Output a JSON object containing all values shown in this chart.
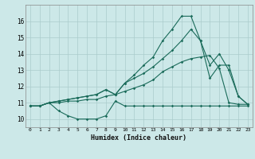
{
  "background_color": "#cce8e8",
  "grid_color": "#aacccc",
  "line_color": "#1a6b5a",
  "xlabel": "Humidex (Indice chaleur)",
  "xlim": [
    -0.5,
    23.5
  ],
  "ylim": [
    9.5,
    17.0
  ],
  "xticks": [
    0,
    1,
    2,
    3,
    4,
    5,
    6,
    7,
    8,
    9,
    10,
    11,
    12,
    13,
    14,
    15,
    16,
    17,
    18,
    19,
    20,
    21,
    22,
    23
  ],
  "yticks": [
    10,
    11,
    12,
    13,
    14,
    15,
    16
  ],
  "line1_x": [
    0,
    1,
    2,
    3,
    4,
    5,
    6,
    7,
    8,
    9,
    10,
    11,
    12,
    13,
    14,
    15,
    16,
    17,
    18,
    19,
    20,
    21,
    22,
    23
  ],
  "line1_y": [
    10.8,
    10.8,
    11.0,
    10.5,
    10.2,
    10.0,
    10.0,
    10.0,
    10.2,
    11.1,
    10.8,
    10.8,
    10.8,
    10.8,
    10.8,
    10.8,
    10.8,
    10.8,
    10.8,
    10.8,
    10.8,
    10.8,
    10.8,
    10.8
  ],
  "line2_x": [
    0,
    1,
    2,
    3,
    4,
    5,
    6,
    7,
    8,
    9,
    10,
    11,
    12,
    13,
    14,
    15,
    16,
    17,
    18,
    19,
    20,
    21,
    22,
    23
  ],
  "line2_y": [
    10.8,
    10.8,
    11.0,
    11.0,
    11.1,
    11.1,
    11.2,
    11.2,
    11.4,
    11.5,
    11.7,
    11.9,
    12.1,
    12.4,
    12.9,
    13.2,
    13.5,
    13.7,
    13.8,
    13.9,
    13.1,
    11.0,
    10.9,
    10.9
  ],
  "line3_x": [
    0,
    1,
    2,
    3,
    4,
    5,
    6,
    7,
    8,
    9,
    10,
    11,
    12,
    13,
    14,
    15,
    16,
    17,
    18,
    19,
    20,
    21,
    22,
    23
  ],
  "line3_y": [
    10.8,
    10.8,
    11.0,
    11.1,
    11.2,
    11.3,
    11.4,
    11.5,
    11.8,
    11.5,
    12.2,
    12.5,
    12.8,
    13.2,
    13.7,
    14.2,
    14.8,
    15.5,
    14.8,
    12.5,
    13.3,
    13.3,
    11.4,
    10.9
  ],
  "line4_x": [
    0,
    1,
    2,
    3,
    4,
    5,
    6,
    7,
    8,
    9,
    10,
    11,
    12,
    13,
    14,
    15,
    16,
    17,
    18,
    19,
    20,
    21,
    22,
    23
  ],
  "line4_y": [
    10.8,
    10.8,
    11.0,
    11.1,
    11.2,
    11.3,
    11.4,
    11.5,
    11.8,
    11.5,
    12.2,
    12.7,
    13.3,
    13.8,
    14.8,
    15.5,
    16.3,
    16.3,
    14.8,
    13.3,
    14.0,
    13.0,
    11.4,
    10.9
  ]
}
